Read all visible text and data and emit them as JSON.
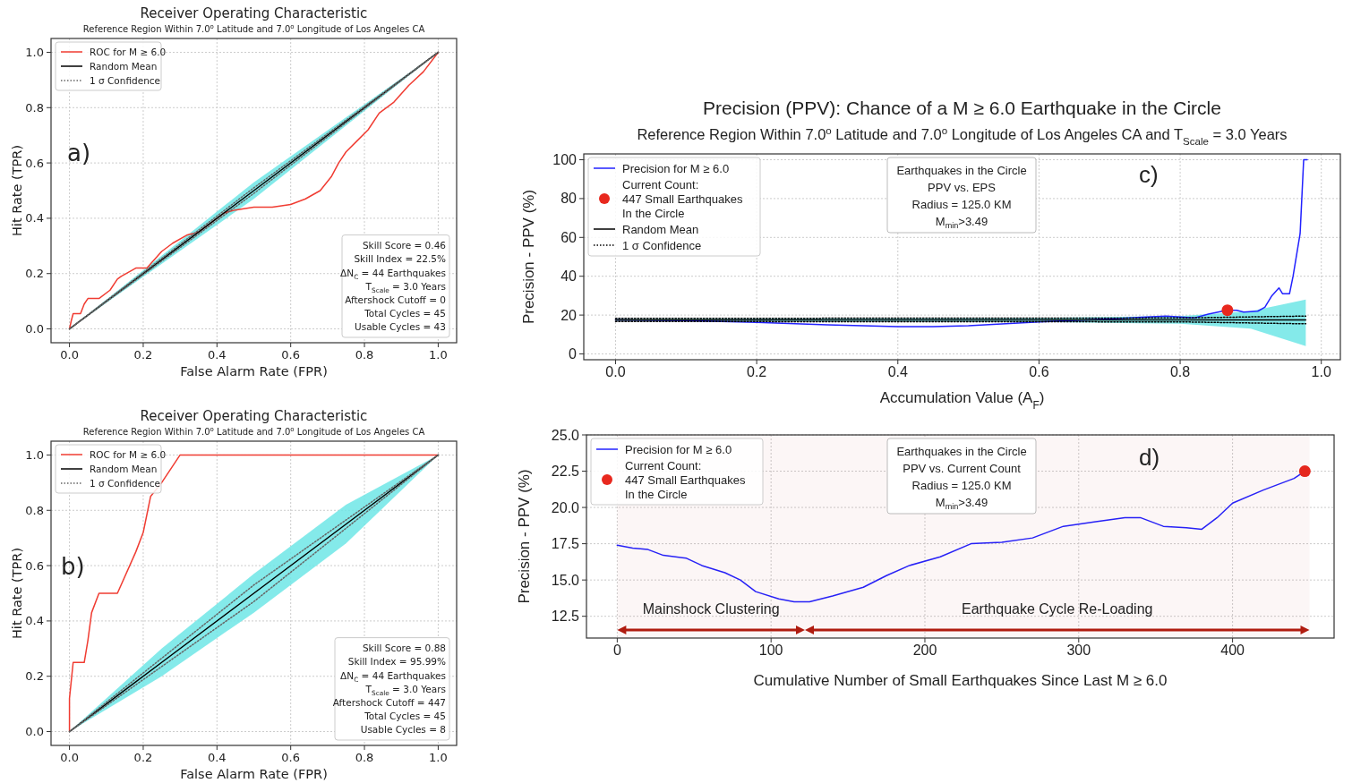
{
  "chart_data": [
    {
      "type": "line",
      "title": "Receiver Operating Characteristic",
      "subtitle": "Reference Region Within 7.0$^{o}$ Latitude and 7.0$^{o}$ Longitude of Los Angeles CA",
      "xlabel": "False Alarm Rate (FPR)",
      "ylabel": "Hit Rate (TPR)",
      "xlim": [
        -0.05,
        1.05
      ],
      "ylim": [
        -0.05,
        1.05
      ],
      "xticks": [
        {
          "value": 0,
          "label": "0.0"
        },
        {
          "value": 0.2,
          "label": "0.2"
        },
        {
          "value": 0.4,
          "label": "0.4"
        },
        {
          "value": 0.6,
          "label": "0.6"
        },
        {
          "value": 0.8,
          "label": "0.8"
        },
        {
          "value": 1,
          "label": "1.0"
        }
      ],
      "yticks": [
        {
          "value": 0,
          "label": "0.0"
        },
        {
          "value": 0.2,
          "label": "0.2"
        },
        {
          "value": 0.4,
          "label": "0.4"
        },
        {
          "value": 0.6,
          "label": "0.6"
        },
        {
          "value": 0.8,
          "label": "0.8"
        },
        {
          "value": 1,
          "label": "1.0"
        }
      ],
      "grid": true,
      "legend": "top left",
      "series": [
        {
          "name": "ROC for M ≥ 6.0",
          "color": "#f03c32",
          "x": [
            0,
            0.005,
            0.01,
            0.03,
            0.04,
            0.05,
            0.08,
            0.11,
            0.13,
            0.14,
            0.18,
            0.21,
            0.25,
            0.28,
            0.32,
            0.35,
            0.38,
            0.42,
            0.45,
            0.5,
            0.55,
            0.6,
            0.64,
            0.68,
            0.71,
            0.73,
            0.75,
            0.78,
            0.81,
            0.84,
            0.88,
            0.92,
            0.96,
            1
          ],
          "values": [
            0,
            0.03,
            0.055,
            0.055,
            0.09,
            0.11,
            0.11,
            0.14,
            0.18,
            0.19,
            0.22,
            0.22,
            0.28,
            0.31,
            0.34,
            0.35,
            0.38,
            0.42,
            0.43,
            0.44,
            0.44,
            0.45,
            0.47,
            0.5,
            0.55,
            0.6,
            0.64,
            0.68,
            0.72,
            0.78,
            0.82,
            0.88,
            0.93,
            1
          ]
        },
        {
          "name": "Random Mean",
          "color": "#000000",
          "x": [
            0,
            0.5,
            1
          ],
          "values": [
            0,
            0.5,
            1
          ],
          "lower": [
            0,
            0.47,
            1
          ],
          "upper": [
            0,
            0.53,
            1
          ]
        },
        {
          "name": "1 σ Confidence",
          "color": "#666666",
          "line_style": "dotted",
          "x": [
            0,
            0.5,
            1
          ],
          "values": [
            0,
            0.51,
            1
          ]
        },
        {
          "color": "#666666",
          "line_style": "dotted",
          "x": [
            0,
            0.5,
            1
          ],
          "values": [
            0,
            0.49,
            1
          ]
        }
      ],
      "annotations": [
        "a)",
        "Skill Score = 0.46",
        "Skill Index = 22.5%",
        "ΔN$_{C}$ = 44 Earthquakes",
        "T$_{Scale}$ = 3.0 Years",
        "Aftershock Cutoff = 0",
        "Total Cycles = 45",
        "Usable Cycles = 43"
      ]
    },
    {
      "type": "line",
      "title": "Receiver Operating Characteristic",
      "subtitle": "Reference Region Within 7.0$^{o}$ Latitude and 7.0$^{o}$ Longitude of Los Angeles CA",
      "xlabel": "False Alarm Rate (FPR)",
      "ylabel": "Hit Rate (TPR)",
      "xlim": [
        -0.05,
        1.05
      ],
      "ylim": [
        -0.05,
        1.05
      ],
      "xticks": [
        {
          "value": 0,
          "label": "0.0"
        },
        {
          "value": 0.2,
          "label": "0.2"
        },
        {
          "value": 0.4,
          "label": "0.4"
        },
        {
          "value": 0.6,
          "label": "0.6"
        },
        {
          "value": 0.8,
          "label": "0.8"
        },
        {
          "value": 1,
          "label": "1.0"
        }
      ],
      "yticks": [
        {
          "value": 0,
          "label": "0.0"
        },
        {
          "value": 0.2,
          "label": "0.2"
        },
        {
          "value": 0.4,
          "label": "0.4"
        },
        {
          "value": 0.6,
          "label": "0.6"
        },
        {
          "value": 0.8,
          "label": "0.8"
        },
        {
          "value": 1,
          "label": "1.0"
        }
      ],
      "grid": true,
      "legend": "top left",
      "series": [
        {
          "name": "ROC for M ≥ 6.0",
          "color": "#f03c32",
          "x": [
            0,
            0,
            0.01,
            0.04,
            0.05,
            0.06,
            0.08,
            0.13,
            0.18,
            0.2,
            0.22,
            0.25,
            0.3,
            1
          ],
          "values": [
            0,
            0.12,
            0.25,
            0.25,
            0.33,
            0.43,
            0.5,
            0.5,
            0.65,
            0.72,
            0.85,
            0.9,
            1,
            1
          ]
        },
        {
          "name": "Random Mean",
          "color": "#000000",
          "x": [
            0,
            0.25,
            0.5,
            0.75,
            1
          ],
          "values": [
            0,
            0.25,
            0.5,
            0.75,
            1
          ],
          "lower": [
            0,
            0.2,
            0.43,
            0.68,
            1
          ],
          "upper": [
            0,
            0.3,
            0.57,
            0.82,
            1
          ]
        },
        {
          "name": "1 σ Confidence",
          "color": "#666666",
          "line_style": "dotted",
          "x": [
            0,
            0.5,
            1
          ],
          "values": [
            0,
            0.53,
            1
          ]
        },
        {
          "color": "#666666",
          "line_style": "dotted",
          "x": [
            0,
            0.5,
            1
          ],
          "values": [
            0,
            0.47,
            1
          ]
        }
      ],
      "annotations": [
        "b)",
        "Skill Score = 0.88",
        "Skill Index = 95.99%",
        "ΔN$_{C}$ = 44 Earthquakes",
        "T$_{Scale}$ = 3.0 Years",
        "Aftershock Cutoff = 447",
        "Total Cycles = 45",
        "Usable Cycles = 8"
      ]
    },
    {
      "type": "line",
      "title": "Precision (PPV): Chance of a M ≥ 6.0 Earthquake in the Circle",
      "subtitle": "Reference Region Within 7.0$^{o}$ Latitude and 7.0$^{o}$ Longitude of Los Angeles CA and T$_{Scale}$ = 3.0 Years",
      "xlabel": "Accumulation Value (A$_{F}$)",
      "ylabel": "Precision - PPV (%)",
      "xlim": [
        -0.045,
        1.027
      ],
      "ylim": [
        -3,
        103
      ],
      "xticks": [
        {
          "value": 0,
          "label": "0.0"
        },
        {
          "value": 0.2,
          "label": "0.2"
        },
        {
          "value": 0.4,
          "label": "0.4"
        },
        {
          "value": 0.6,
          "label": "0.6"
        },
        {
          "value": 0.8,
          "label": "0.8"
        },
        {
          "value": 1,
          "label": "1.0"
        }
      ],
      "yticks": [
        0,
        20,
        40,
        60,
        80,
        100
      ],
      "grid": true,
      "legend": "top left",
      "series": [
        {
          "name": "Precision for M ≥ 6.0",
          "color": "#2222ff",
          "x": [
            0,
            0.1,
            0.2,
            0.3,
            0.4,
            0.45,
            0.5,
            0.6,
            0.7,
            0.78,
            0.8,
            0.82,
            0.84,
            0.86,
            0.87,
            0.88,
            0.89,
            0.91,
            0.92,
            0.93,
            0.94,
            0.945,
            0.955,
            0.96,
            0.97,
            0.975,
            0.98
          ],
          "values": [
            17.5,
            17.2,
            16.2,
            15,
            14,
            14,
            14.5,
            16.5,
            18,
            19.5,
            19,
            18.5,
            20.5,
            22,
            22.5,
            22.5,
            21.5,
            22,
            24,
            30,
            34,
            31,
            31,
            40,
            62,
            100,
            100
          ]
        },
        {
          "name": "Current Count:\n447 Small Earthquakes\nIn the Circle",
          "type": "scatter",
          "marker": "circle",
          "color": "#e8281e",
          "x": [
            0.867
          ],
          "values": [
            22.5
          ]
        },
        {
          "name": "Random Mean",
          "color": "#000000",
          "x": [
            0,
            0.6,
            0.8,
            0.9,
            0.978
          ],
          "values": [
            17.5,
            17.5,
            17.5,
            17.5,
            17.5
          ],
          "lower": [
            17,
            16.5,
            15.5,
            13,
            4
          ],
          "upper": [
            18,
            18.5,
            19.5,
            22,
            28
          ]
        },
        {
          "name": "1 σ Confidence",
          "color": "#000000",
          "line_style": "dotted",
          "x": [
            0,
            0.8,
            0.978
          ],
          "values": [
            18.3,
            18.5,
            19.5
          ]
        },
        {
          "color": "#000000",
          "line_style": "dotted",
          "x": [
            0,
            0.8,
            0.978
          ],
          "values": [
            16.7,
            16.5,
            15.5
          ]
        }
      ],
      "annotations": [
        "c)",
        "Earthquakes in the Circle",
        "PPV vs. EPS",
        "Radius = 125.0 KM",
        "M$_{min}$>3.49"
      ]
    },
    {
      "type": "line",
      "xlabel": "Cumulative Number of Small Earthquakes Since Last M ≥ 6.0",
      "ylabel": "Precision - PPV (%)",
      "xlim": [
        -20,
        466
      ],
      "ylim": [
        11,
        25
      ],
      "xticks": [
        0,
        100,
        200,
        300,
        400
      ],
      "yticks": [
        {
          "value": 12.5,
          "label": "12.5"
        },
        {
          "value": 15,
          "label": "15.0"
        },
        {
          "value": 17.5,
          "label": "17.5"
        },
        {
          "value": 20,
          "label": "20.0"
        },
        {
          "value": 22.5,
          "label": "22.5"
        },
        {
          "value": 25,
          "label": "25.0"
        }
      ],
      "grid": true,
      "legend": "top left",
      "series": [
        {
          "name": "Precision for M ≥ 6.0",
          "color": "#2222ff",
          "x": [
            0,
            10,
            20,
            30,
            45,
            55,
            70,
            80,
            90,
            105,
            115,
            125,
            140,
            160,
            175,
            190,
            210,
            230,
            250,
            270,
            290,
            310,
            330,
            340,
            355,
            370,
            380,
            390,
            400,
            420,
            440,
            447
          ],
          "values": [
            17.4,
            17.2,
            17.1,
            16.7,
            16.5,
            16,
            15.5,
            15,
            14.2,
            13.7,
            13.5,
            13.5,
            13.9,
            14.5,
            15.3,
            16,
            16.6,
            17.5,
            17.6,
            17.9,
            18.7,
            19,
            19.3,
            19.3,
            18.7,
            18.6,
            18.5,
            19.3,
            20.3,
            21.2,
            22,
            22.5
          ]
        },
        {
          "name": "Current Count:\n447 Small Earthquakes\nIn the Circle",
          "type": "scatter",
          "marker": "circle",
          "color": "#e8281e",
          "x": [
            447
          ],
          "values": [
            22.5
          ]
        }
      ],
      "bands": [
        {
          "axis": "x",
          "from": 0,
          "to": 122,
          "label": "Mainshock Clustering",
          "color": "#b01c10"
        },
        {
          "axis": "x",
          "from": 122,
          "to": 450,
          "label": "Earthquake Cycle Re-Loading",
          "color": "#b01c10"
        }
      ],
      "annotations": [
        "d)",
        "Earthquakes in the Circle",
        "PPV vs. Current Count",
        "Radius = 125.0 KM",
        "M$_{min}$>3.49"
      ]
    }
  ]
}
